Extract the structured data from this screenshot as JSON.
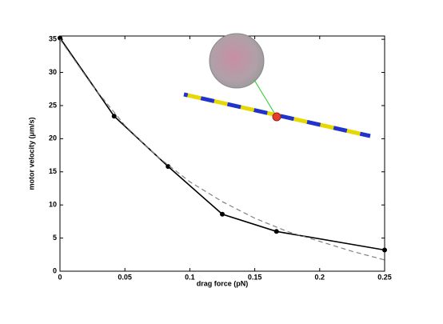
{
  "chart_data": {
    "type": "line",
    "x_label": "drag force (pN)",
    "y_label": "motor velocity (μm/s)",
    "series": [
      {
        "color": "#000000",
        "dashed": false,
        "markers": true,
        "x": [
          0,
          0.0417,
          0.0833,
          0.125,
          0.1667,
          0.25
        ],
        "values": [
          35.2,
          23.4,
          15.8,
          8.6,
          6.0,
          3.2
        ]
      },
      {
        "color": "#808080",
        "dashed": true,
        "markers": false,
        "x": [
          0,
          0.025,
          0.05,
          0.075,
          0.1,
          0.125,
          0.15,
          0.175,
          0.2,
          0.225,
          0.25
        ],
        "values": [
          35,
          28,
          22,
          17.3,
          13.5,
          10.5,
          8,
          6,
          4.5,
          3,
          1.7
        ]
      }
    ],
    "xlim": [
      0,
      0.25
    ],
    "xticks": [
      0,
      0.05,
      0.1,
      0.15,
      0.2,
      0.25
    ],
    "ylim": [
      0,
      35.5
    ],
    "yticks": [
      0,
      5,
      10,
      15,
      20,
      25,
      30,
      35
    ]
  }
}
